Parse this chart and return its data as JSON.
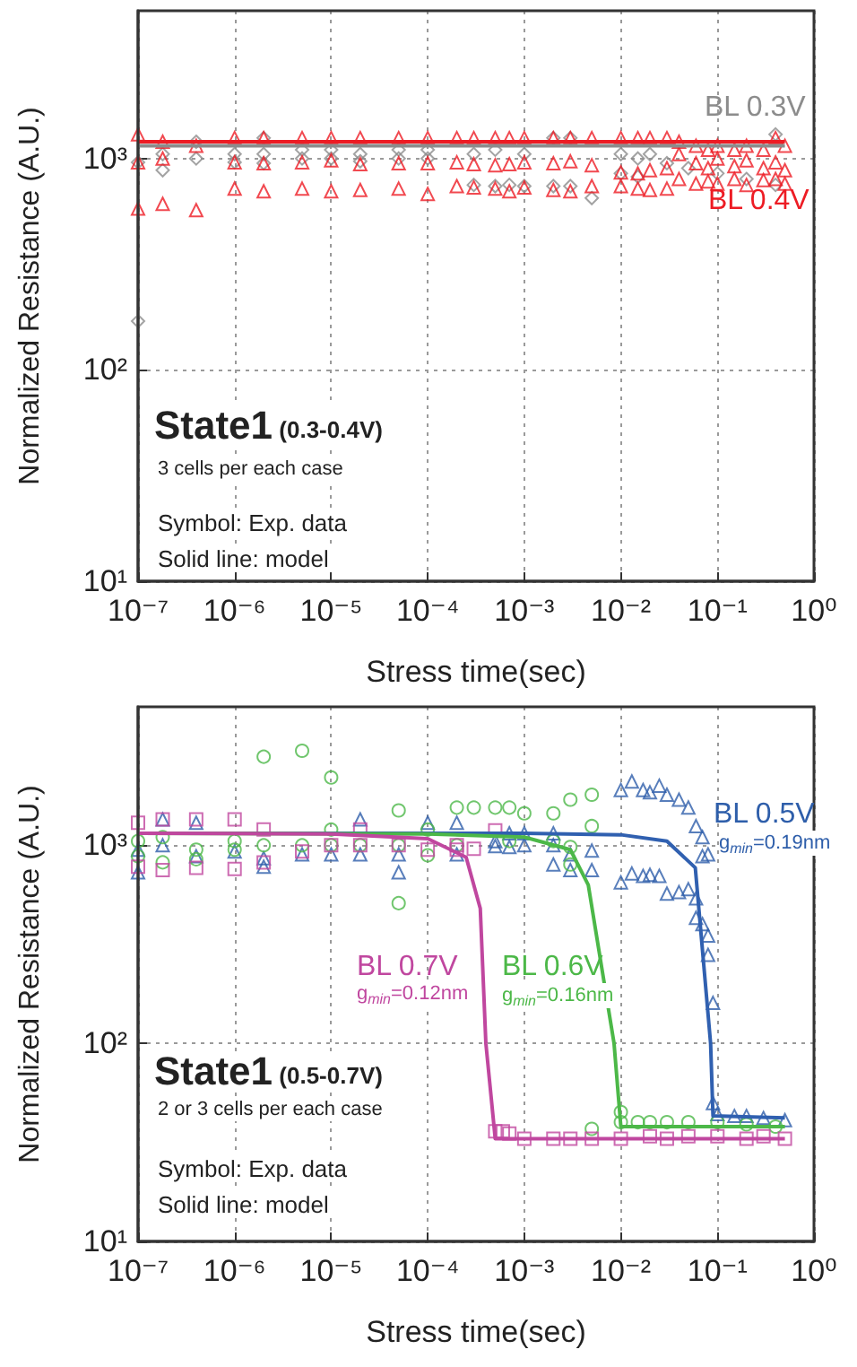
{
  "chart_data": [
    {
      "type": "scatter",
      "xlabel": "Stress time(sec)",
      "ylabel": "Normalized Resistance (A.U.)",
      "log": "xy",
      "grid": true,
      "xlim": [
        1e-07,
        1
      ],
      "xticks": [
        {
          "value": 1e-07,
          "label": "10⁻⁷"
        },
        {
          "value": 1e-06,
          "label": "10⁻⁶"
        },
        {
          "value": 1e-05,
          "label": "10⁻⁵"
        },
        {
          "value": 0.0001,
          "label": "10⁻⁴"
        },
        {
          "value": 0.001,
          "label": "10⁻³"
        },
        {
          "value": 0.01,
          "label": "10⁻²"
        },
        {
          "value": 0.1,
          "label": "10⁻¹"
        },
        {
          "value": 1,
          "label": "10⁰"
        }
      ],
      "ylim": [
        10,
        5000
      ],
      "yticks": [
        {
          "value": 10,
          "label": "10¹"
        },
        {
          "value": 100,
          "label": "10²"
        },
        {
          "value": 1000,
          "label": "10³"
        }
      ],
      "series": [
        {
          "name": "BL 0.3V",
          "color": "#8c8c8c",
          "marker": "diamond",
          "x": [
            1e-07,
            1e-07,
            1.8e-07,
            1.8e-07,
            4e-07,
            4e-07,
            1e-06,
            1e-06,
            2e-06,
            2e-06,
            2e-06,
            5e-06,
            5e-06,
            1e-05,
            1e-05,
            2e-05,
            2e-05,
            5e-05,
            5e-05,
            0.0001,
            0.0001,
            0.0003,
            0.0003,
            0.0005,
            0.0005,
            0.0007,
            0.001,
            0.001,
            0.002,
            0.002,
            0.003,
            0.003,
            0.005,
            0.01,
            0.01,
            0.015,
            0.015,
            0.02,
            0.03,
            0.05,
            0.1,
            0.2,
            0.4,
            0.4
          ],
          "values": [
            170,
            960,
            1050,
            880,
            1200,
            1000,
            1050,
            960,
            1250,
            1050,
            950,
            1100,
            1000,
            1100,
            1000,
            1050,
            970,
            1100,
            1000,
            1100,
            1000,
            1050,
            750,
            1100,
            740,
            750,
            1050,
            740,
            1250,
            740,
            1250,
            740,
            650,
            1050,
            850,
            1000,
            820,
            1050,
            950,
            900,
            850,
            800,
            1300,
            750
          ]
        },
        {
          "name": "BL 0.4V",
          "color": "#ed1c24",
          "marker": "triangle",
          "x": [
            1e-07,
            1e-07,
            1e-07,
            1.8e-07,
            1.8e-07,
            1.8e-07,
            4e-07,
            4e-07,
            1e-06,
            1e-06,
            1e-06,
            2e-06,
            2e-06,
            2e-06,
            5e-06,
            5e-06,
            5e-06,
            1e-05,
            1e-05,
            1e-05,
            2e-05,
            2e-05,
            2e-05,
            5e-05,
            5e-05,
            5e-05,
            0.0001,
            0.0001,
            0.0001,
            0.0002,
            0.0002,
            0.0002,
            0.0003,
            0.0003,
            0.0003,
            0.0005,
            0.0005,
            0.0005,
            0.0007,
            0.0007,
            0.0007,
            0.001,
            0.001,
            0.001,
            0.002,
            0.002,
            0.002,
            0.003,
            0.003,
            0.003,
            0.005,
            0.005,
            0.005,
            0.01,
            0.01,
            0.01,
            0.015,
            0.015,
            0.015,
            0.02,
            0.02,
            0.02,
            0.03,
            0.03,
            0.03,
            0.04,
            0.04,
            0.04,
            0.06,
            0.06,
            0.06,
            0.08,
            0.08,
            0.08,
            0.1,
            0.1,
            0.1,
            0.15,
            0.15,
            0.15,
            0.2,
            0.2,
            0.2,
            0.3,
            0.3,
            0.3,
            0.4,
            0.4,
            0.4,
            0.5,
            0.5,
            0.5
          ],
          "values": [
            1300,
            960,
            580,
            1200,
            1000,
            610,
            1150,
            570,
            1250,
            960,
            720,
            1250,
            950,
            700,
            1250,
            960,
            720,
            1250,
            980,
            700,
            1250,
            940,
            710,
            1250,
            950,
            720,
            1250,
            950,
            680,
            1250,
            960,
            740,
            1250,
            940,
            730,
            1250,
            930,
            720,
            1250,
            940,
            700,
            1250,
            960,
            730,
            1250,
            950,
            710,
            1250,
            970,
            700,
            1250,
            930,
            740,
            1250,
            860,
            740,
            1250,
            850,
            720,
            1250,
            880,
            710,
            1250,
            900,
            720,
            1200,
            1050,
            800,
            1150,
            950,
            760,
            1100,
            900,
            780,
            1150,
            1000,
            760,
            1100,
            920,
            800,
            1150,
            980,
            750,
            1100,
            900,
            790,
            1250,
            960,
            800,
            1150,
            880,
            760
          ]
        },
        {
          "type": "line",
          "color": "#8c8c8c",
          "marker": "none",
          "x": [
            1e-07,
            0.5
          ],
          "values": [
            1150,
            1150
          ]
        },
        {
          "type": "line",
          "color": "#ed1c24",
          "marker": "none",
          "x": [
            1e-07,
            0.5
          ],
          "values": [
            1200,
            1200
          ]
        }
      ],
      "annotations": [
        "State1 (0.3-0.4V)",
        "3 cells per each case",
        "Symbol: Exp. data",
        "Solid line: model"
      ]
    },
    {
      "type": "scatter",
      "xlabel": "Stress time(sec)",
      "ylabel": "Normalized Resistance (A.U.)",
      "log": "xy",
      "grid": true,
      "xlim": [
        1e-07,
        1
      ],
      "xticks": [
        {
          "value": 1e-07,
          "label": "10⁻⁷"
        },
        {
          "value": 1e-06,
          "label": "10⁻⁶"
        },
        {
          "value": 1e-05,
          "label": "10⁻⁵"
        },
        {
          "value": 0.0001,
          "label": "10⁻⁴"
        },
        {
          "value": 0.001,
          "label": "10⁻³"
        },
        {
          "value": 0.01,
          "label": "10⁻²"
        },
        {
          "value": 0.1,
          "label": "10⁻¹"
        },
        {
          "value": 1,
          "label": "10⁰"
        }
      ],
      "ylim": [
        10,
        5000
      ],
      "yticks": [
        {
          "value": 10,
          "label": "10¹"
        },
        {
          "value": 100,
          "label": "10²"
        },
        {
          "value": 1000,
          "label": "10³"
        }
      ],
      "series": [
        {
          "name": "BL 0.5V",
          "color": "#2e5eaa",
          "marker": "triangle",
          "x": [
            1e-07,
            1e-07,
            1.8e-07,
            1.8e-07,
            4e-07,
            4e-07,
            1e-06,
            2e-06,
            2e-06,
            5e-06,
            1e-05,
            2e-05,
            2e-05,
            5e-05,
            5e-05,
            0.0001,
            0.0002,
            0.0002,
            0.0005,
            0.0005,
            0.0007,
            0.0007,
            0.001,
            0.001,
            0.002,
            0.002,
            0.002,
            0.003,
            0.003,
            0.005,
            0.005,
            0.01,
            0.01,
            0.013,
            0.013,
            0.017,
            0.017,
            0.02,
            0.02,
            0.025,
            0.025,
            0.03,
            0.03,
            0.04,
            0.04,
            0.05,
            0.05,
            0.06,
            0.06,
            0.06,
            0.07,
            0.07,
            0.07,
            0.08,
            0.08,
            0.08,
            0.09,
            0.09,
            0.1,
            0.15,
            0.2,
            0.3,
            0.5
          ],
          "values": [
            950,
            730,
            1350,
            1000,
            1300,
            880,
            930,
            860,
            780,
            900,
            900,
            1350,
            900,
            900,
            730,
            1300,
            1300,
            900,
            1050,
            990,
            1150,
            980,
            1150,
            1000,
            1150,
            800,
            1000,
            900,
            750,
            940,
            750,
            1900,
            650,
            2100,
            720,
            1900,
            700,
            1850,
            710,
            2000,
            700,
            1800,
            570,
            1700,
            580,
            1550,
            600,
            1250,
            540,
            430,
            1100,
            880,
            400,
            900,
            350,
            280,
            160,
            50,
            44,
            43,
            43,
            42,
            41
          ]
        },
        {
          "name": "BL 0.6V",
          "color": "#4cb848",
          "marker": "circle",
          "x": [
            1e-07,
            1e-07,
            1.8e-07,
            1.8e-07,
            4e-07,
            4e-07,
            1e-06,
            1e-06,
            2e-06,
            2e-06,
            5e-06,
            5e-06,
            1e-05,
            1e-05,
            1e-05,
            2e-05,
            5e-05,
            5e-05,
            5e-05,
            0.0001,
            0.0001,
            0.0002,
            0.0002,
            0.0003,
            0.0005,
            0.0007,
            0.0007,
            0.001,
            0.002,
            0.002,
            0.003,
            0.003,
            0.003,
            0.005,
            0.005,
            0.005,
            0.01,
            0.01,
            0.015,
            0.02,
            0.03,
            0.05,
            0.1,
            0.2,
            0.4
          ],
          "values": [
            1050,
            880,
            1100,
            820,
            950,
            850,
            1050,
            950,
            2800,
            1000,
            3000,
            1000,
            2200,
            1200,
            1000,
            1000,
            1500,
            1000,
            510,
            1200,
            890,
            1550,
            1000,
            1550,
            1550,
            1550,
            1050,
            1450,
            1450,
            1050,
            1700,
            980,
            800,
            1800,
            1250,
            37,
            45,
            40,
            40,
            40,
            40,
            40,
            40,
            39,
            38
          ]
        },
        {
          "name": "BL 0.7V",
          "color": "#c0479f",
          "marker": "square",
          "x": [
            1e-07,
            1e-07,
            1.8e-07,
            1.8e-07,
            4e-07,
            4e-07,
            1e-06,
            1e-06,
            2e-06,
            2e-06,
            5e-06,
            1e-05,
            2e-05,
            2e-05,
            5e-05,
            0.0001,
            0.0002,
            0.0002,
            0.0003,
            0.0005,
            0.0005,
            0.0006,
            0.0007,
            0.001,
            0.002,
            0.003,
            0.005,
            0.01,
            0.02,
            0.03,
            0.05,
            0.1,
            0.2,
            0.3,
            0.5
          ],
          "values": [
            1300,
            780,
            1350,
            750,
            1350,
            770,
            1350,
            760,
            1200,
            820,
            930,
            1000,
            1000,
            1200,
            1000,
            950,
            1000,
            950,
            960,
            1190,
            36,
            36,
            35,
            33,
            33,
            33,
            33,
            33,
            34,
            33,
            34,
            34,
            33,
            34,
            33
          ]
        },
        {
          "type": "line",
          "color": "#3060b0",
          "marker": "none",
          "x": [
            1e-07,
            0.001,
            0.01,
            0.03,
            0.059,
            0.085,
            0.09,
            0.5
          ],
          "values": [
            1150,
            1150,
            1130,
            1050,
            770,
            100,
            43,
            42
          ]
        },
        {
          "type": "line",
          "color": "#4cb848",
          "marker": "none",
          "x": [
            1e-07,
            0.0001,
            0.001,
            0.003,
            0.0046,
            0.0085,
            0.01,
            0.5
          ],
          "values": [
            1150,
            1140,
            1100,
            950,
            630,
            100,
            38,
            38
          ]
        },
        {
          "type": "line",
          "color": "#c0479f",
          "marker": "none",
          "x": [
            1e-07,
            1e-05,
            0.0001,
            0.00025,
            0.00035,
            0.0004,
            0.0005,
            0.5
          ],
          "values": [
            1150,
            1140,
            1080,
            870,
            480,
            100,
            33,
            33
          ]
        }
      ],
      "annotations": [
        "State1 (0.5-0.7V)",
        "2 or 3 cells per each case",
        "Symbol: Exp. data",
        "Solid line: model",
        "g$_{min}$=0.19nm",
        "g$_{min}$=0.12nm",
        "g$_{min}$=0.16nm"
      ]
    }
  ]
}
